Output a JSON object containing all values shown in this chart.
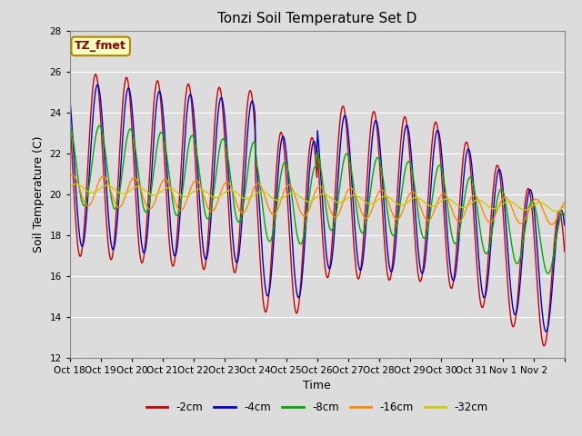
{
  "title": "Tonzi Soil Temperature Set D",
  "xlabel": "Time",
  "ylabel": "Soil Temperature (C)",
  "ylim": [
    12,
    28
  ],
  "yticks": [
    12,
    14,
    16,
    18,
    20,
    22,
    24,
    26,
    28
  ],
  "annotation": "TZ_fmet",
  "annotation_color": "#8B0000",
  "annotation_bg": "#FFFFC0",
  "colors": {
    "-2cm": "#CC0000",
    "-4cm": "#0000CC",
    "-8cm": "#00AA00",
    "-16cm": "#FF8800",
    "-32cm": "#CCCC00"
  },
  "legend_labels": [
    "-2cm",
    "-4cm",
    "-8cm",
    "-16cm",
    "-32cm"
  ],
  "xtick_labels": [
    "Oct 18",
    "Oct 19",
    "Oct 20",
    "Oct 21",
    "Oct 22",
    "Oct 23",
    "Oct 24",
    "Oct 25",
    "Oct 26",
    "Oct 27",
    "Oct 28",
    "Oct 29",
    "Oct 30",
    "Oct 31",
    "Nov 1",
    "Nov 2"
  ],
  "fig_bg": "#DCDCDC",
  "plot_bg": "#DCDCDC"
}
